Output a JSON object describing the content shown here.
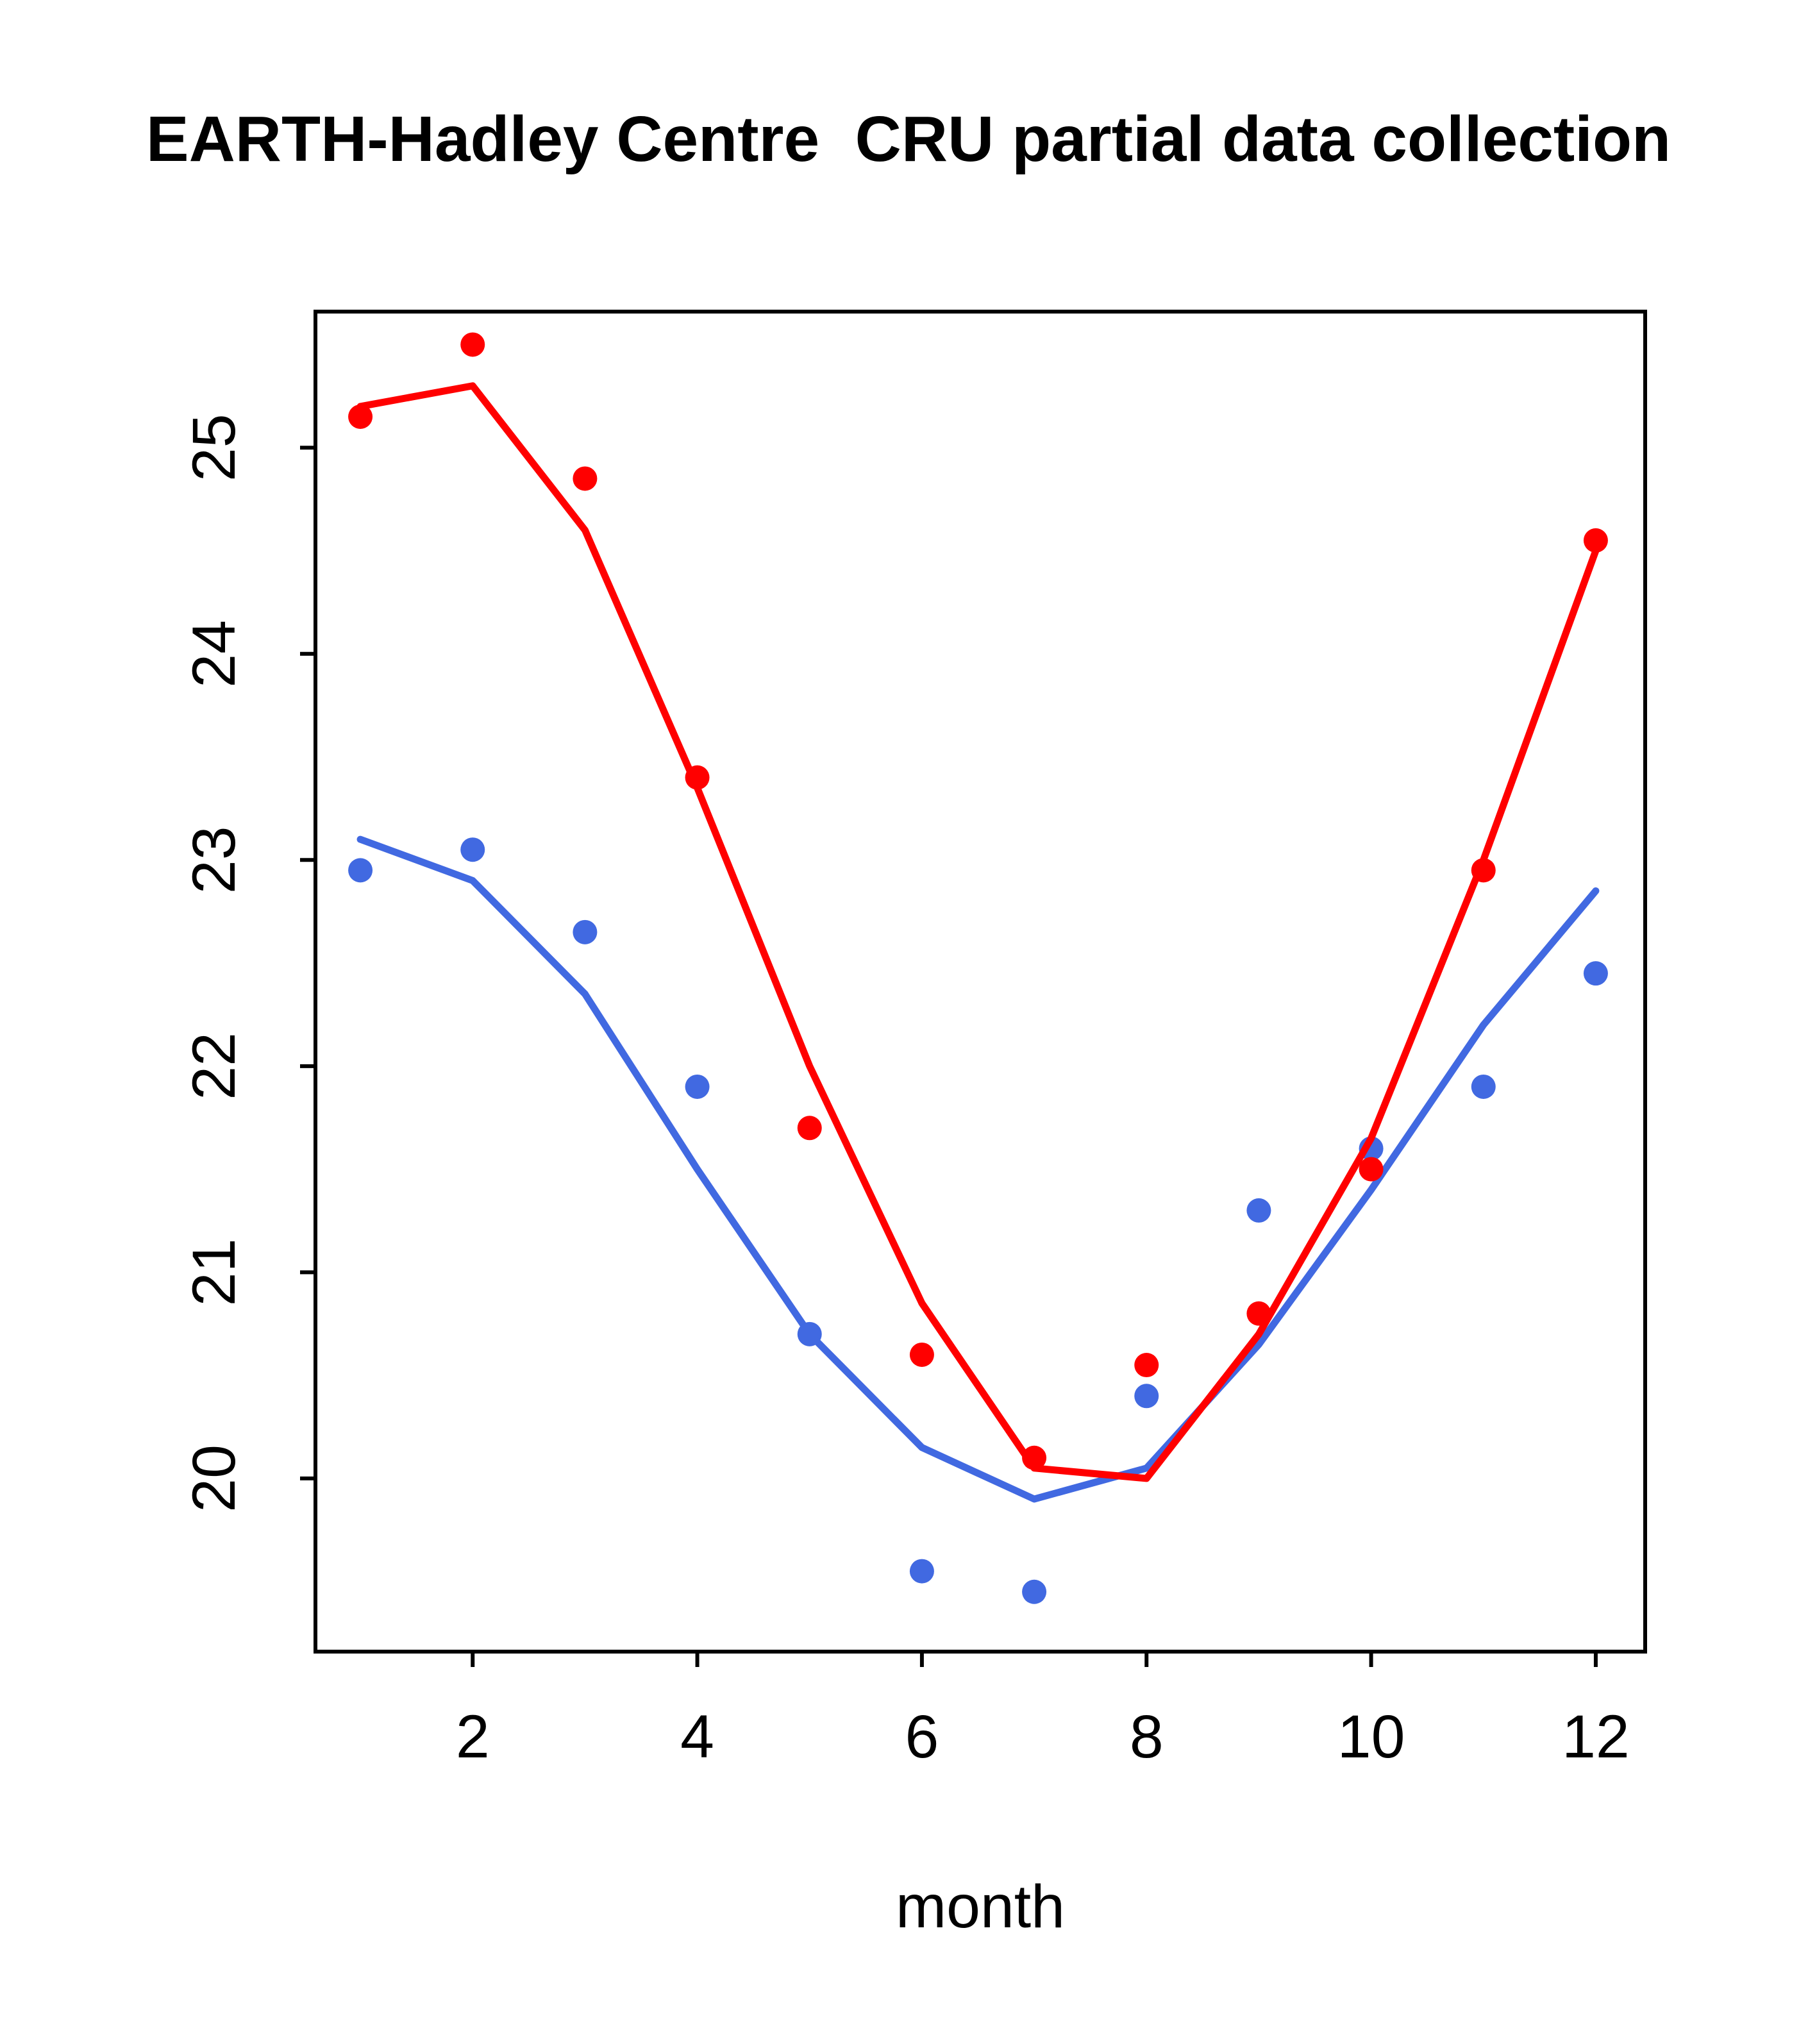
{
  "title": "EARTH-Hadley Centre  CRU partial data collection",
  "colors": {
    "background": "#FFFFFF",
    "axis": "#000000",
    "red_series": "#FF0000",
    "blue_series": "#4169E1"
  },
  "chart_data": {
    "type": "line",
    "title": "EARTH-Hadley Centre  CRU partial data collection",
    "xlabel": "month",
    "ylabel": "",
    "xlim": [
      0.6,
      12.44
    ],
    "ylim": [
      19.16,
      25.66
    ],
    "xticks": [
      2,
      4,
      6,
      8,
      10,
      12
    ],
    "yticks": [
      20,
      21,
      22,
      23,
      24,
      25
    ],
    "grid": false,
    "legend": "none",
    "x": [
      1,
      2,
      3,
      4,
      5,
      6,
      7,
      8,
      9,
      10,
      11,
      12
    ],
    "series": [
      {
        "name": "blue-line",
        "style": "line",
        "color": "#4169E1",
        "values": [
          23.1,
          22.9,
          22.35,
          21.5,
          20.7,
          20.15,
          19.9,
          20.05,
          20.65,
          21.4,
          22.2,
          22.85
        ]
      },
      {
        "name": "blue-points",
        "style": "points",
        "color": "#4169E1",
        "values": [
          22.95,
          23.05,
          22.65,
          21.9,
          20.7,
          19.55,
          19.45,
          20.4,
          21.3,
          21.6,
          21.9,
          22.45
        ]
      },
      {
        "name": "red-line",
        "style": "line",
        "color": "#FF0000",
        "values": [
          25.2,
          25.3,
          24.6,
          23.35,
          22.0,
          20.85,
          20.05,
          20.0,
          20.7,
          21.65,
          23.0,
          24.5
        ]
      },
      {
        "name": "red-points",
        "style": "points",
        "color": "#FF0000",
        "values": [
          25.15,
          25.5,
          24.85,
          23.4,
          21.7,
          20.6,
          20.1,
          20.55,
          20.8,
          21.5,
          22.95,
          24.55
        ]
      }
    ]
  }
}
